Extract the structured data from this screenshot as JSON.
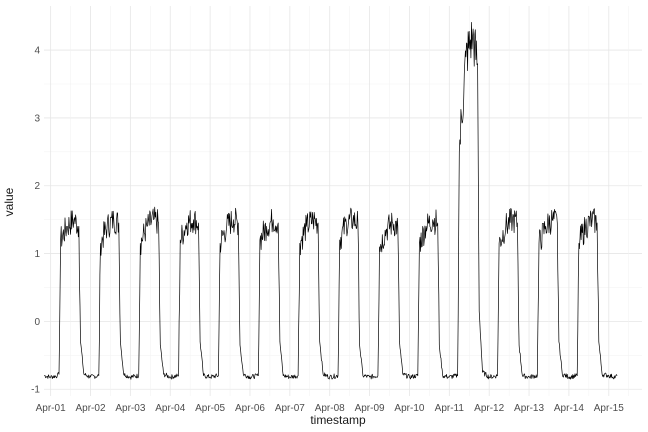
{
  "chart_data": {
    "type": "line",
    "title": "",
    "xlabel": "timestamp",
    "ylabel": "value",
    "x_tick_labels": [
      "Apr-01",
      "Apr-02",
      "Apr-03",
      "Apr-04",
      "Apr-05",
      "Apr-06",
      "Apr-07",
      "Apr-08",
      "Apr-09",
      "Apr-10",
      "Apr-11",
      "Apr-12",
      "Apr-13",
      "Apr-14",
      "Apr-15"
    ],
    "y_ticks": [
      -1,
      0,
      1,
      2,
      3,
      4
    ],
    "xlim": [
      "2014-03-31T20:00",
      "2014-04-15T20:00"
    ],
    "ylim": [
      -1.1,
      4.65
    ],
    "grid": true,
    "legend": "none",
    "series": [
      {
        "x": [
          "2014-03-31T20:00",
          "2014-04-01T00:00",
          "2014-04-01T04:00",
          "2014-04-01T05:00",
          "2014-04-01T06:00",
          "2014-04-01T10:00",
          "2014-04-01T14:00",
          "2014-04-01T17:00",
          "2014-04-01T18:00",
          "2014-04-01T20:00",
          "2014-04-02T00:00",
          "2014-04-02T05:00",
          "2014-04-02T06:00",
          "2014-04-02T10:00",
          "2014-04-02T14:00",
          "2014-04-02T17:00",
          "2014-04-02T18:00",
          "2014-04-02T20:00",
          "2014-04-03T00:00",
          "2014-04-03T05:00",
          "2014-04-03T06:00",
          "2014-04-03T10:00",
          "2014-04-03T14:00",
          "2014-04-03T17:00",
          "2014-04-03T18:00",
          "2014-04-03T20:00",
          "2014-04-04T00:00",
          "2014-04-04T05:00",
          "2014-04-04T06:00",
          "2014-04-04T10:00",
          "2014-04-04T14:00",
          "2014-04-04T17:00",
          "2014-04-04T18:00",
          "2014-04-04T20:00",
          "2014-04-05T00:00",
          "2014-04-05T05:00",
          "2014-04-05T06:00",
          "2014-04-05T10:00",
          "2014-04-05T14:00",
          "2014-04-05T17:00",
          "2014-04-05T18:00",
          "2014-04-05T20:00",
          "2014-04-06T00:00",
          "2014-04-06T05:00",
          "2014-04-06T06:00",
          "2014-04-06T10:00",
          "2014-04-06T14:00",
          "2014-04-06T17:00",
          "2014-04-06T18:00",
          "2014-04-06T20:00",
          "2014-04-07T00:00",
          "2014-04-07T05:00",
          "2014-04-07T06:00",
          "2014-04-07T10:00",
          "2014-04-07T14:00",
          "2014-04-07T17:00",
          "2014-04-07T18:00",
          "2014-04-07T20:00",
          "2014-04-08T00:00",
          "2014-04-08T05:00",
          "2014-04-08T06:00",
          "2014-04-08T10:00",
          "2014-04-08T14:00",
          "2014-04-08T17:00",
          "2014-04-08T18:00",
          "2014-04-08T20:00",
          "2014-04-09T00:00",
          "2014-04-09T05:00",
          "2014-04-09T06:00",
          "2014-04-09T10:00",
          "2014-04-09T14:00",
          "2014-04-09T17:00",
          "2014-04-09T18:00",
          "2014-04-09T20:00",
          "2014-04-10T00:00",
          "2014-04-10T05:00",
          "2014-04-10T06:00",
          "2014-04-10T10:00",
          "2014-04-10T14:00",
          "2014-04-10T17:00",
          "2014-04-10T18:00",
          "2014-04-10T20:00",
          "2014-04-11T00:00",
          "2014-04-11T05:00",
          "2014-04-11T06:00",
          "2014-04-11T10:00",
          "2014-04-11T14:00",
          "2014-04-11T17:00",
          "2014-04-11T18:00",
          "2014-04-11T20:00",
          "2014-04-12T00:00",
          "2014-04-12T05:00",
          "2014-04-12T06:00",
          "2014-04-12T10:00",
          "2014-04-12T14:00",
          "2014-04-12T17:00",
          "2014-04-12T18:00",
          "2014-04-12T20:00",
          "2014-04-13T00:00",
          "2014-04-13T05:00",
          "2014-04-13T06:00",
          "2014-04-13T10:00",
          "2014-04-13T14:00",
          "2014-04-13T17:00",
          "2014-04-13T18:00",
          "2014-04-13T20:00",
          "2014-04-14T00:00",
          "2014-04-14T05:00",
          "2014-04-14T06:00",
          "2014-04-14T10:00",
          "2014-04-14T14:00",
          "2014-04-14T17:00",
          "2014-04-14T18:00",
          "2014-04-14T20:00",
          "2014-04-15T00:00",
          "2014-04-15T04:00",
          "2014-04-15T05:00"
        ],
        "y": [
          -0.8,
          -0.82,
          -0.8,
          -0.78,
          1.2,
          1.4,
          1.5,
          1.4,
          -0.3,
          -0.78,
          -0.82,
          -0.8,
          1.15,
          1.4,
          1.5,
          1.45,
          -0.3,
          -0.78,
          -0.82,
          -0.8,
          1.15,
          1.4,
          1.5,
          1.45,
          -0.35,
          -0.78,
          -0.82,
          -0.8,
          1.2,
          1.45,
          1.5,
          1.45,
          -0.3,
          -0.8,
          -0.82,
          -0.8,
          1.15,
          1.4,
          1.5,
          1.45,
          -0.35,
          -0.78,
          -0.82,
          -0.8,
          1.2,
          1.4,
          1.5,
          1.45,
          -0.3,
          -0.8,
          -0.82,
          -0.8,
          1.15,
          1.4,
          1.5,
          1.45,
          -0.3,
          -0.78,
          -0.82,
          -0.8,
          1.2,
          1.45,
          1.5,
          1.45,
          -0.35,
          -0.8,
          -0.82,
          -0.8,
          1.1,
          1.35,
          1.45,
          1.4,
          -0.3,
          -0.78,
          -0.82,
          -0.8,
          1.15,
          1.4,
          1.5,
          1.45,
          -0.35,
          -0.8,
          -0.82,
          -0.8,
          2.5,
          3.9,
          4.2,
          3.8,
          0.15,
          -0.75,
          -0.82,
          -0.8,
          1.15,
          1.4,
          1.5,
          1.45,
          -0.35,
          -0.8,
          -0.82,
          -0.8,
          1.15,
          1.4,
          1.5,
          1.45,
          -0.3,
          -0.78,
          -0.82,
          -0.8,
          1.15,
          1.4,
          1.5,
          1.45,
          -0.3,
          -0.78,
          -0.8,
          -0.82,
          -0.8
        ]
      }
    ]
  }
}
